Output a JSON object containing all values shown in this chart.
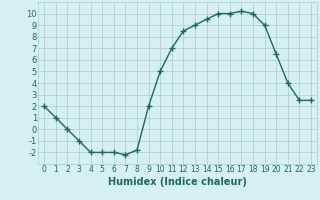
{
  "x": [
    0,
    1,
    2,
    3,
    4,
    5,
    6,
    7,
    8,
    9,
    10,
    11,
    12,
    13,
    14,
    15,
    16,
    17,
    18,
    19,
    20,
    21,
    22,
    23
  ],
  "y": [
    2,
    1,
    0,
    -1,
    -2,
    -2,
    -2,
    -2.2,
    -1.8,
    2,
    5,
    7,
    8.5,
    9,
    9.5,
    10,
    10,
    10.2,
    10,
    9,
    6.5,
    4,
    2.5,
    2.5
  ],
  "line_color": "#1a6b5a",
  "marker_color": "#1a6b5a",
  "bg_color": "#d6eff0",
  "grid_color": "#aacccc",
  "xlabel": "Humidex (Indice chaleur)",
  "xlim": [
    -0.5,
    23.5
  ],
  "ylim": [
    -3,
    11
  ],
  "yticks": [
    -2,
    -1,
    0,
    1,
    2,
    3,
    4,
    5,
    6,
    7,
    8,
    9,
    10
  ],
  "xticks": [
    0,
    1,
    2,
    3,
    4,
    5,
    6,
    7,
    8,
    9,
    10,
    11,
    12,
    13,
    14,
    15,
    16,
    17,
    18,
    19,
    20,
    21,
    22,
    23
  ],
  "xtick_labels": [
    "0",
    "1",
    "2",
    "3",
    "4",
    "5",
    "6",
    "7",
    "8",
    "9",
    "10",
    "11",
    "12",
    "13",
    "14",
    "15",
    "16",
    "17",
    "18",
    "19",
    "20",
    "21",
    "22",
    "23"
  ]
}
